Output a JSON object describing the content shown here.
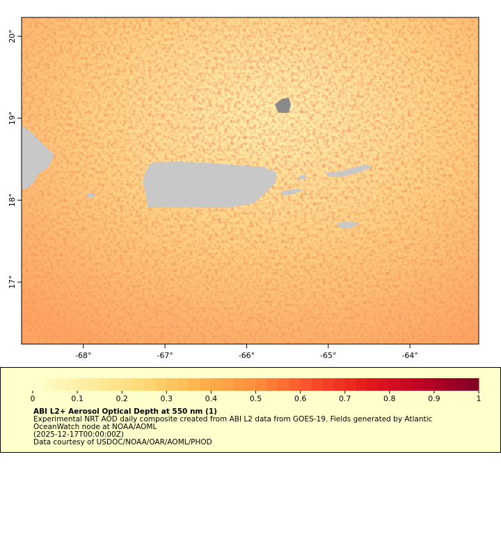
{
  "map": {
    "xlim": [
      -68.757,
      -63.157
    ],
    "ylim": [
      16.244,
      20.23
    ],
    "xticks": [
      {
        "value": -68,
        "label": "-68°"
      },
      {
        "value": -67,
        "label": "-67°"
      },
      {
        "value": -66,
        "label": "-66°"
      },
      {
        "value": -65,
        "label": "-65°"
      },
      {
        "value": -64,
        "label": "-64°"
      }
    ],
    "yticks": [
      {
        "value": 17,
        "label": "17°"
      },
      {
        "value": 18,
        "label": "18°"
      },
      {
        "value": 19,
        "label": "19°"
      },
      {
        "value": 20,
        "label": "20°"
      }
    ]
  },
  "colorbar": {
    "lim": [
      0,
      1
    ],
    "ticks": [
      0,
      0.1,
      0.2,
      0.3,
      0.4,
      0.5,
      0.6,
      0.7,
      0.8,
      0.9,
      1
    ],
    "colors": [
      "#ffffcc",
      "#ffeda0",
      "#fed976",
      "#feb24c",
      "#fd8d3c",
      "#fc4e2a",
      "#e31a1c",
      "#bd0026",
      "#800026"
    ]
  },
  "legend": {
    "title": "ABI L2+ Aerosol Optical Depth at 550 nm (1)",
    "lines": [
      "Experimental NRT AOD daily composite created from ABI L2 data from GOES-19. Fields generated by Atlantic",
      "OceanWatch node at NOAA/AOML",
      "(2025-12-17T00:00:00Z)",
      "Data courtesy of USDOC/NOAA/OAR/AOML/PHOD"
    ]
  }
}
